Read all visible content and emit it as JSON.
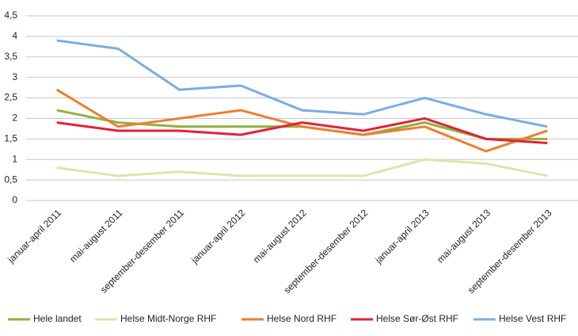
{
  "chart_data": {
    "type": "line",
    "categories": [
      "januar-april 2011",
      "mai-august 2011",
      "september-desember 2011",
      "januar-april 2012",
      "mai-august 2012",
      "september-desember 2012",
      "januar-april 2013",
      "mai-august 2013",
      "september-desember 2013"
    ],
    "series": [
      {
        "name": "Hele landet",
        "color": "#8db33c",
        "values": [
          2.2,
          1.9,
          1.8,
          1.8,
          1.8,
          1.6,
          1.9,
          1.5,
          1.5
        ]
      },
      {
        "name": "Helse Midt-Norge RHF",
        "color": "#dfe3ad",
        "values": [
          0.8,
          0.6,
          0.7,
          0.6,
          0.6,
          0.6,
          1.0,
          0.9,
          0.6
        ]
      },
      {
        "name": "Helse Nord RHF",
        "color": "#ef7d30",
        "values": [
          2.7,
          1.8,
          2.0,
          2.2,
          1.8,
          1.6,
          1.8,
          1.2,
          1.7
        ]
      },
      {
        "name": "Helse Sør-Øst RHF",
        "color": "#e2213a",
        "values": [
          1.9,
          1.7,
          1.7,
          1.6,
          1.9,
          1.7,
          2.0,
          1.5,
          1.4
        ]
      },
      {
        "name": "Helse Vest RHF",
        "color": "#7bade0",
        "values": [
          3.9,
          3.7,
          2.7,
          2.8,
          2.2,
          2.1,
          2.5,
          2.1,
          1.8
        ]
      }
    ],
    "ylim": [
      0,
      4.5
    ],
    "yticks": [
      0,
      {
        "value": 0.5,
        "label": "0,5"
      },
      1,
      {
        "value": 1.5,
        "label": "1,5"
      },
      2,
      {
        "value": 2.5,
        "label": "2,5"
      },
      3,
      {
        "value": 3.5,
        "label": "3,5"
      },
      4,
      {
        "value": 4.5,
        "label": "4,5"
      }
    ],
    "grid": true
  }
}
